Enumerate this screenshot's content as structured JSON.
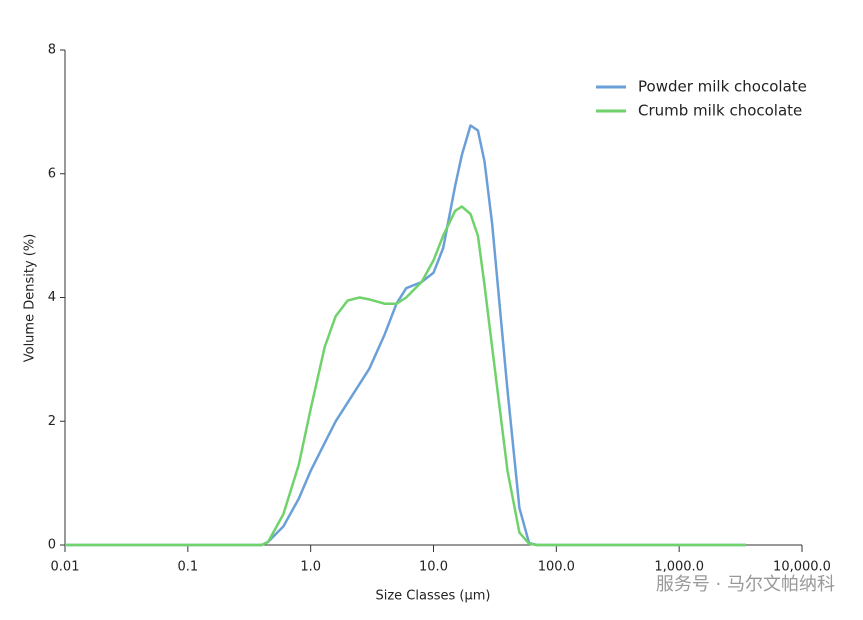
{
  "chart_data": {
    "type": "line",
    "x_label": "Size Classes (µm)",
    "y_label": "Volume Density (%)",
    "xscale": "log",
    "x": [
      0.01,
      0.4,
      0.45,
      0.6,
      0.8,
      1,
      1.3,
      1.6,
      2,
      2.5,
      3,
      4,
      5,
      6,
      8,
      10,
      12,
      15,
      17,
      20,
      23,
      26,
      30,
      40,
      50,
      60,
      70,
      3500
    ],
    "series": [
      {
        "name": "Powder milk chocolate",
        "color": "#6a9fd8",
        "values": [
          0,
          0,
          0.05,
          0.3,
          0.75,
          1.2,
          1.65,
          2.0,
          2.3,
          2.6,
          2.85,
          3.4,
          3.9,
          4.15,
          4.25,
          4.4,
          4.8,
          5.8,
          6.3,
          6.78,
          6.7,
          6.2,
          5.2,
          2.5,
          0.6,
          0.03,
          0,
          0
        ]
      },
      {
        "name": "Crumb milk chocolate",
        "color": "#6fd26a",
        "values": [
          0,
          0,
          0.05,
          0.5,
          1.3,
          2.2,
          3.2,
          3.7,
          3.95,
          4.0,
          3.97,
          3.9,
          3.9,
          4.0,
          4.25,
          4.6,
          5.0,
          5.4,
          5.47,
          5.35,
          5.0,
          4.2,
          3.2,
          1.2,
          0.2,
          0.02,
          0,
          0
        ]
      }
    ],
    "xlim": [
      0.01,
      10000
    ],
    "xticks": [
      0.01,
      0.1,
      {
        "value": 1,
        "label": "1.0"
      },
      {
        "value": 10,
        "label": "10.0"
      },
      {
        "value": 100,
        "label": "100.0"
      },
      {
        "value": 1000,
        "label": "1,000.0"
      },
      {
        "value": 10000,
        "label": "10,000.0"
      }
    ],
    "ylim": [
      0,
      8
    ],
    "yticks": [
      0,
      2,
      4,
      6,
      8
    ],
    "legend": "top-right",
    "watermark": "服务号 · 马尔文帕纳科"
  }
}
